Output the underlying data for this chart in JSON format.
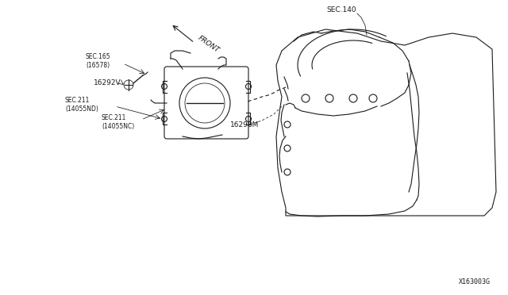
{
  "background_color": "#ffffff",
  "figure_id": "X163003G",
  "label_sec140": "SEC.140",
  "label_front": "FRONT",
  "label_16298M": "16298M",
  "label_sec211_nd": "SEC.211\n(14055ND)",
  "label_sec211_nc": "SEC.211\n(14055NC)",
  "label_16292V": "16292V",
  "label_sec165": "SEC.165\n(16578)",
  "text_color": "#1a1a1a",
  "line_color": "#1a1a1a",
  "fig_width": 6.4,
  "fig_height": 3.72,
  "dpi": 100
}
